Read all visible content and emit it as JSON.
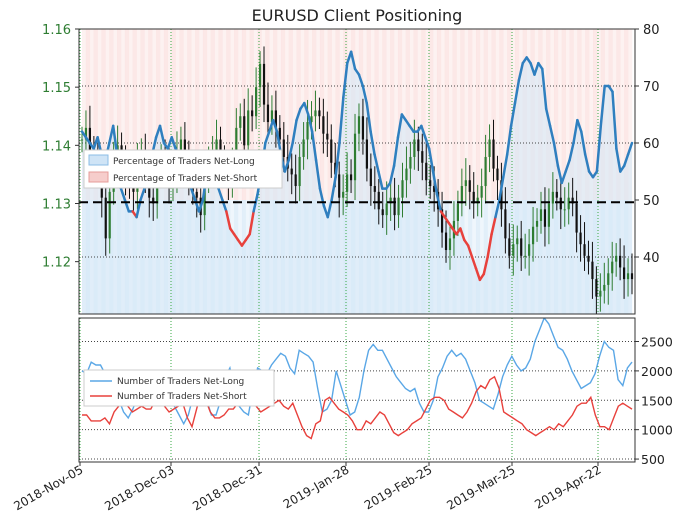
{
  "chart_data": [
    {
      "type": "line",
      "title": "EURUSD Client Positioning",
      "x_ticks": [
        "2018-Nov-05",
        "2018-Dec-03",
        "2018-Dec-31",
        "2019-Jan-28",
        "2019-Feb-25",
        "2019-Mar-25",
        "2019-Apr-22"
      ],
      "left_axis": {
        "label": "",
        "ticks": [
          1.12,
          1.13,
          1.14,
          1.15,
          1.16
        ],
        "range": [
          1.111,
          1.16
        ],
        "color": "#2e7d32"
      },
      "right_axis": {
        "label": "",
        "ticks": [
          40,
          50,
          60,
          70,
          80
        ],
        "range": [
          30,
          80
        ]
      },
      "reference_line": {
        "axis": "right",
        "value": 49.6,
        "style": "dashed",
        "color": "#000000"
      },
      "legend": {
        "position": "upper-left",
        "entries": [
          "Percentage of Traders Net-Long",
          "Percentage of Traders Net-Short"
        ]
      },
      "series": [
        {
          "name": "Percentage of Traders Net-Long",
          "axis": "right",
          "color": "#2f7fbf",
          "fill": "#d6e8f7",
          "values": [
            62,
            61,
            60,
            59,
            61,
            58,
            57,
            60,
            63,
            58,
            52,
            50,
            48,
            48,
            47,
            50,
            52,
            55,
            58,
            61,
            63,
            60,
            59,
            61,
            59,
            58,
            55,
            53,
            52,
            50,
            48,
            50,
            55,
            58,
            56,
            52,
            50,
            48,
            45,
            44,
            43,
            42,
            43,
            44,
            48,
            51,
            55,
            60,
            62,
            64,
            62,
            58,
            55,
            57,
            60,
            64,
            66,
            67,
            65,
            62,
            57,
            52,
            49,
            47,
            50,
            54,
            60,
            68,
            74,
            76,
            73,
            72,
            70,
            67,
            62,
            58,
            55,
            52,
            52,
            53,
            56,
            61,
            65,
            64,
            63,
            62,
            62,
            63,
            61,
            59,
            55,
            51,
            48,
            47,
            46,
            45,
            44,
            45,
            43,
            42,
            40,
            38,
            36,
            37,
            40,
            44,
            47,
            50,
            54,
            58,
            63,
            67,
            71,
            74,
            75,
            74,
            72,
            74,
            73,
            66,
            63,
            60,
            56,
            53,
            55,
            57,
            60,
            64,
            62,
            58,
            55,
            54,
            55,
            63,
            70,
            70,
            69,
            59,
            55,
            56,
            58,
            60
          ]
        },
        {
          "name": "Percentage of Traders Net-Short",
          "axis": "right",
          "color": "#e8413c",
          "fill": "#f9d5d3",
          "values": [
            38,
            39,
            40,
            41,
            39,
            42,
            43,
            40,
            37,
            42,
            48,
            50,
            52,
            52,
            53,
            50,
            48,
            45,
            42,
            39,
            37,
            40,
            41,
            39,
            41,
            42,
            45,
            47,
            48,
            50,
            52,
            50,
            45,
            42,
            44,
            48,
            50,
            52,
            55,
            56,
            57,
            58,
            57,
            56,
            52,
            49,
            45,
            40,
            38,
            36,
            38,
            42,
            45,
            43,
            40,
            36,
            34,
            33,
            35,
            38,
            43,
            48,
            51,
            53,
            50,
            46,
            40,
            32,
            26,
            24,
            27,
            28,
            30,
            33,
            38,
            42,
            45,
            48,
            48,
            47,
            44,
            39,
            35,
            36,
            37,
            38,
            38,
            37,
            39,
            41,
            45,
            49,
            52,
            53,
            54,
            55,
            56,
            55,
            57,
            58,
            60,
            62,
            64,
            63,
            60,
            56,
            53,
            50,
            46,
            42,
            37,
            33,
            29,
            26,
            25,
            26,
            28,
            26,
            27,
            34,
            37,
            40,
            44,
            47,
            45,
            43,
            40,
            36,
            38,
            42,
            45,
            46,
            45,
            37,
            30,
            30,
            31,
            41,
            45,
            44,
            42,
            40
          ]
        },
        {
          "name": "EURUSD",
          "axis": "left",
          "type": "ohlc",
          "color": "#2e7d32",
          "down_color": "#111111",
          "values": [
            1.141,
            1.143,
            1.139,
            1.137,
            1.135,
            1.131,
            1.124,
            1.132,
            1.138,
            1.14,
            1.137,
            1.134,
            1.133,
            1.132,
            1.137,
            1.139,
            1.134,
            1.131,
            1.13,
            1.135,
            1.138,
            1.136,
            1.133,
            1.134,
            1.139,
            1.141,
            1.137,
            1.134,
            1.132,
            1.131,
            1.128,
            1.134,
            1.136,
            1.139,
            1.141,
            1.137,
            1.135,
            1.134,
            1.137,
            1.143,
            1.145,
            1.14,
            1.146,
            1.145,
            1.15,
            1.154,
            1.147,
            1.144,
            1.146,
            1.143,
            1.141,
            1.138,
            1.136,
            1.135,
            1.133,
            1.138,
            1.141,
            1.144,
            1.145,
            1.146,
            1.145,
            1.142,
            1.141,
            1.137,
            1.135,
            1.131,
            1.132,
            1.135,
            1.134,
            1.142,
            1.145,
            1.141,
            1.136,
            1.133,
            1.132,
            1.129,
            1.128,
            1.13,
            1.131,
            1.128,
            1.131,
            1.134,
            1.136,
            1.138,
            1.141,
            1.139,
            1.137,
            1.134,
            1.133,
            1.132,
            1.129,
            1.125,
            1.122,
            1.124,
            1.127,
            1.13,
            1.133,
            1.134,
            1.132,
            1.13,
            1.131,
            1.133,
            1.138,
            1.141,
            1.136,
            1.134,
            1.129,
            1.124,
            1.121,
            1.123,
            1.124,
            1.121,
            1.121,
            1.123,
            1.126,
            1.127,
            1.129,
            1.126,
            1.13,
            1.132,
            1.131,
            1.129,
            1.129,
            1.131,
            1.13,
            1.125,
            1.123,
            1.121,
            1.12,
            1.117,
            1.114,
            1.115,
            1.116,
            1.118,
            1.12,
            1.121,
            1.119,
            1.117,
            1.118,
            1.117
          ]
        }
      ]
    },
    {
      "type": "line",
      "title": "",
      "right_axis": {
        "label": "",
        "ticks": [
          500,
          1000,
          1500,
          2000,
          2500
        ],
        "range": [
          450,
          2900
        ]
      },
      "legend": {
        "position": "upper-left",
        "entries": [
          "Number of Traders Net-Long",
          "Number of Traders Net-Short"
        ]
      },
      "series": [
        {
          "name": "Number of Traders Net-Long",
          "color": "#5aa7e6",
          "values": [
            2000,
            1950,
            2150,
            2100,
            2100,
            1950,
            1600,
            1500,
            1500,
            1300,
            1200,
            1350,
            1550,
            1700,
            1750,
            1650,
            1500,
            1650,
            1900,
            1700,
            1400,
            1250,
            1100,
            1250,
            1550,
            1700,
            1750,
            1500,
            1250,
            1250,
            1500,
            1900,
            2050,
            1650,
            1400,
            1300,
            1250,
            1700,
            2050,
            2000,
            1950,
            2100,
            2200,
            2300,
            2250,
            2050,
            1950,
            2350,
            2300,
            2250,
            2150,
            1700,
            1300,
            1350,
            1500,
            2000,
            1750,
            1500,
            1250,
            1300,
            1550,
            2000,
            2350,
            2450,
            2350,
            2350,
            2200,
            2050,
            1900,
            1800,
            1700,
            1650,
            1700,
            1450,
            1300,
            1300,
            1500,
            1900,
            2050,
            2250,
            2350,
            2250,
            2300,
            2200,
            2000,
            1800,
            1500,
            1450,
            1400,
            1350,
            1600,
            1900,
            2100,
            2250,
            2100,
            2000,
            2050,
            2200,
            2500,
            2700,
            2900,
            2800,
            2600,
            2400,
            2350,
            2200,
            2000,
            1850,
            1700,
            1750,
            1800,
            1950,
            2250,
            2500,
            2400,
            2350,
            1850,
            1750,
            2050,
            2150
          ]
        },
        {
          "name": "Number of Traders Net-Short",
          "color": "#e8413c",
          "values": [
            1250,
            1250,
            1150,
            1150,
            1150,
            1200,
            1100,
            1300,
            1400,
            1450,
            1400,
            1300,
            1350,
            1400,
            1350,
            1350,
            1500,
            1550,
            1400,
            1300,
            1350,
            1400,
            1450,
            1200,
            1050,
            1350,
            1650,
            1500,
            1300,
            1200,
            1200,
            1250,
            1350,
            1350,
            1450,
            1650,
            1700,
            1550,
            1400,
            1300,
            1350,
            1400,
            1450,
            1500,
            1400,
            1350,
            1450,
            1250,
            1050,
            900,
            850,
            1100,
            1150,
            1500,
            1550,
            1450,
            1350,
            1300,
            1250,
            1150,
            1000,
            1000,
            1150,
            1100,
            1200,
            1300,
            1250,
            1100,
            950,
            900,
            950,
            1000,
            1100,
            1150,
            1200,
            1350,
            1500,
            1550,
            1550,
            1500,
            1350,
            1300,
            1250,
            1200,
            1300,
            1450,
            1650,
            1750,
            1700,
            1850,
            1900,
            1700,
            1300,
            1250,
            1200,
            1150,
            1100,
            1000,
            950,
            900,
            950,
            1000,
            1050,
            1000,
            1100,
            1050,
            1150,
            1250,
            1400,
            1450,
            1450,
            1550,
            1250,
            1050,
            1050,
            1000,
            1200,
            1400,
            1450,
            1400,
            1350
          ]
        }
      ]
    }
  ]
}
